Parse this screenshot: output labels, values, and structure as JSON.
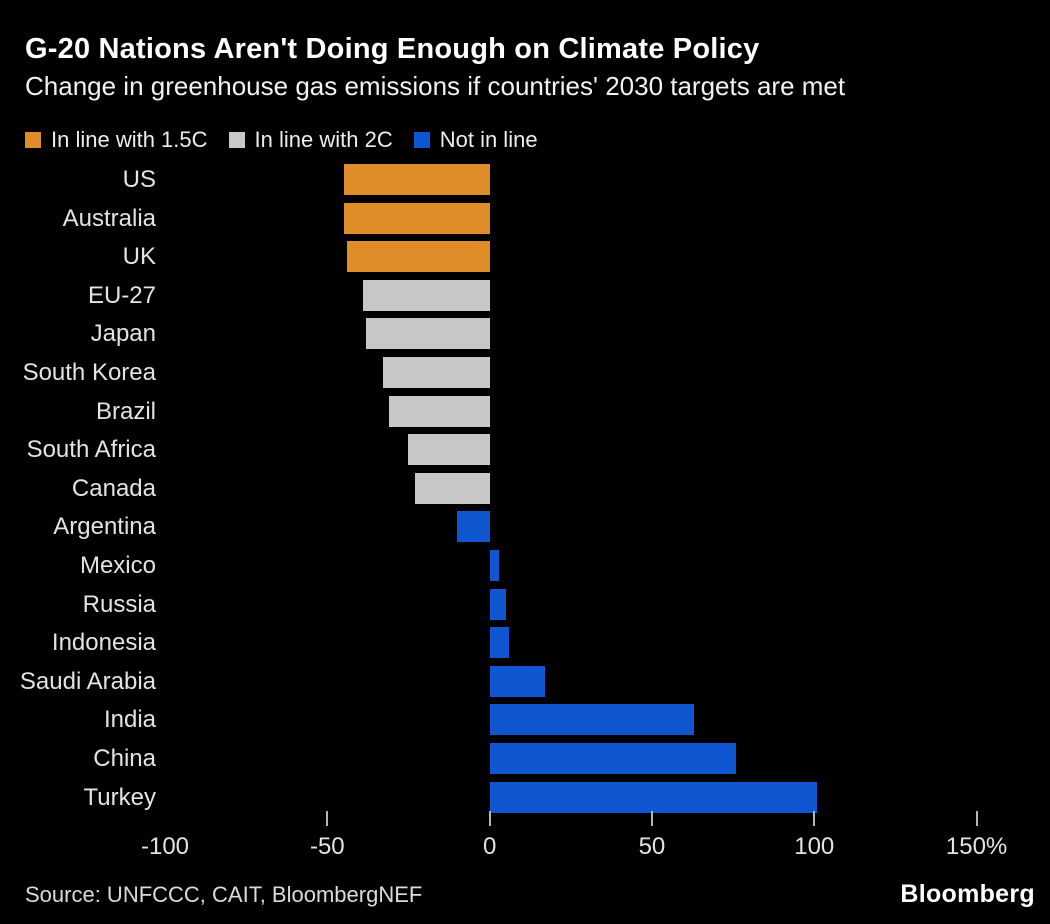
{
  "chart_data": {
    "type": "bar",
    "orientation": "horizontal",
    "title": "G-20 Nations Aren't Doing Enough on Climate Policy",
    "subtitle": "Change in greenhouse gas emissions if countries' 2030 targets are met",
    "unit": "%",
    "xlim": [
      -100,
      168
    ],
    "grid": false,
    "legend_position": "top-left",
    "legend_order": [
      "in_line_1_5C",
      "in_line_2C",
      "not_in_line"
    ],
    "groups": {
      "in_line_1_5C": {
        "label": "In line with 1.5C",
        "color": "#DF8D28"
      },
      "in_line_2C": {
        "label": "In line with 2C",
        "color": "#C7C7C7"
      },
      "not_in_line": {
        "label": "Not in line",
        "color": "#1156D1"
      }
    },
    "bars": [
      {
        "country": "US",
        "value": -45,
        "group": "in_line_1_5C"
      },
      {
        "country": "Australia",
        "value": -45,
        "group": "in_line_1_5C"
      },
      {
        "country": "UK",
        "value": -44,
        "group": "in_line_1_5C"
      },
      {
        "country": "EU-27",
        "value": -39,
        "group": "in_line_2C"
      },
      {
        "country": "Japan",
        "value": -38,
        "group": "in_line_2C"
      },
      {
        "country": "South Korea",
        "value": -33,
        "group": "in_line_2C"
      },
      {
        "country": "Brazil",
        "value": -31,
        "group": "in_line_2C"
      },
      {
        "country": "South Africa",
        "value": -25,
        "group": "in_line_2C"
      },
      {
        "country": "Canada",
        "value": -23,
        "group": "in_line_2C"
      },
      {
        "country": "Argentina",
        "value": -10,
        "group": "not_in_line"
      },
      {
        "country": "Mexico",
        "value": 3,
        "group": "not_in_line"
      },
      {
        "country": "Russia",
        "value": 5,
        "group": "not_in_line"
      },
      {
        "country": "Indonesia",
        "value": 6,
        "group": "not_in_line"
      },
      {
        "country": "Saudi Arabia",
        "value": 17,
        "group": "not_in_line"
      },
      {
        "country": "India",
        "value": 63,
        "group": "not_in_line"
      },
      {
        "country": "China",
        "value": 76,
        "group": "not_in_line"
      },
      {
        "country": "Turkey",
        "value": 101,
        "group": "not_in_line"
      }
    ],
    "x_ticks": [
      {
        "value": -100,
        "label": "-100",
        "mark": false
      },
      {
        "value": -50,
        "label": "-50",
        "mark": true
      },
      {
        "value": 0,
        "label": "0",
        "mark": true
      },
      {
        "value": 50,
        "label": "50",
        "mark": true
      },
      {
        "value": 100,
        "label": "100",
        "mark": true
      },
      {
        "value": 150,
        "label": "150%",
        "mark": true
      }
    ]
  },
  "footer": {
    "source": "Source: UNFCCC, CAIT, BloombergNEF",
    "logo": "Bloomberg"
  },
  "colors": {
    "background": "#000000",
    "title_text": "#ffffff",
    "label_text": "#e3e3e3",
    "tick_mark": "#b5b5b5"
  }
}
